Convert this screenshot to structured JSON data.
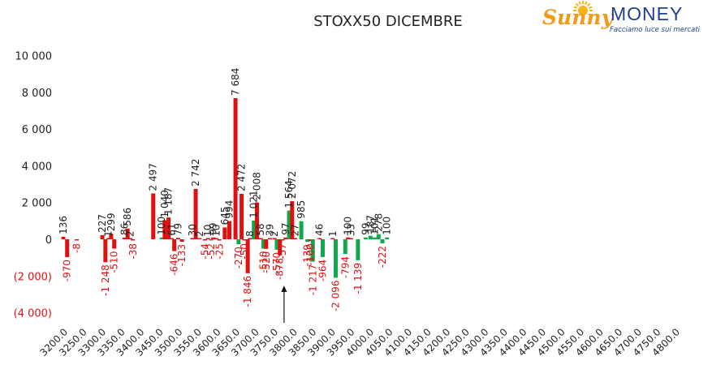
{
  "logo": {
    "word1": "Sunny",
    "word2": "MONEY",
    "tagline": "Facciamo luce sui mercati",
    "colors": {
      "sunny": "#f29a1a",
      "money": "#1f3f8f",
      "sun": "#f7b21b",
      "tagline": "#1f3f8f"
    }
  },
  "chart_data": {
    "type": "bar",
    "title": "STOXX50 DICEMBRE",
    "categories": [
      "3200.0",
      "3250.0",
      "3300.0",
      "3350.0",
      "3400.0",
      "3450.0",
      "3500.0",
      "3550.0",
      "3600.0",
      "3650.0",
      "3700.0",
      "3750.0",
      "3800.0",
      "3850.0",
      "3900.0",
      "3950.0",
      "4000.0",
      "4050.0",
      "4100.0",
      "4150.0",
      "4200.0",
      "4250.0",
      "4300.0",
      "4350.0",
      "4400.0",
      "4450.0",
      "4500.0",
      "4550.0",
      "4600.0",
      "4650.0",
      "4700.0",
      "4750.0",
      "4800.0"
    ],
    "ylim": [
      -4000,
      10000
    ],
    "yticks": [
      {
        "value": 10000,
        "label": "10 000"
      },
      {
        "value": 8000,
        "label": "8 000"
      },
      {
        "value": 6000,
        "label": "6 000"
      },
      {
        "value": 4000,
        "label": "4 000"
      },
      {
        "value": 2000,
        "label": "2 000"
      },
      {
        "value": 0,
        "label": "0"
      },
      {
        "value": -2000,
        "label": "(2 000)"
      },
      {
        "value": -4000,
        "label": "(4 000)"
      }
    ],
    "grid": false,
    "legend": "none",
    "colors": {
      "red": "#e01010",
      "green": "#10a84a",
      "axis_text": "#222222"
    },
    "bars": [
      {
        "x": 3200,
        "value": 136,
        "label": "136",
        "color": "red"
      },
      {
        "x": 3210,
        "value": -970,
        "label": "-970",
        "color": "red"
      },
      {
        "x": 3235,
        "value": -8,
        "label": "-8",
        "color": "red"
      },
      {
        "x": 3302,
        "value": 227,
        "label": "227",
        "color": "red"
      },
      {
        "x": 3310,
        "value": -1248,
        "label": "-1 248",
        "color": "red"
      },
      {
        "x": 3318,
        "value": 1,
        "label": "1",
        "color": "red"
      },
      {
        "x": 3325,
        "value": 299,
        "label": "299",
        "color": "red"
      },
      {
        "x": 3333,
        "value": -510,
        "label": "-510",
        "color": "red"
      },
      {
        "x": 3360,
        "value": 86,
        "label": "86",
        "color": "red"
      },
      {
        "x": 3368,
        "value": 586,
        "label": "586",
        "color": "red"
      },
      {
        "x": 3375,
        "value": 2,
        "label": "2",
        "color": "red"
      },
      {
        "x": 3382,
        "value": -38,
        "label": "-38",
        "color": "red"
      },
      {
        "x": 3435,
        "value": 2497,
        "label": "2 497",
        "color": "red"
      },
      {
        "x": 3457,
        "value": 100,
        "label": "100",
        "color": "green"
      },
      {
        "x": 3465,
        "value": 1040,
        "label": "1 040",
        "color": "red"
      },
      {
        "x": 3475,
        "value": 1187,
        "label": "1 187",
        "color": "red"
      },
      {
        "x": 3483,
        "value": 61,
        "label": "61",
        "color": "red"
      },
      {
        "x": 3490,
        "value": -646,
        "label": "-646",
        "color": "red"
      },
      {
        "x": 3500,
        "value": 79,
        "label": "79",
        "color": "red"
      },
      {
        "x": 3510,
        "value": -133,
        "label": "-133",
        "color": "red"
      },
      {
        "x": 3537,
        "value": 30,
        "label": "30",
        "color": "red"
      },
      {
        "x": 3546,
        "value": 2742,
        "label": "2 742",
        "color": "red"
      },
      {
        "x": 3556,
        "value": 2,
        "label": "2",
        "color": "red"
      },
      {
        "x": 3570,
        "value": -54,
        "label": "-54",
        "color": "red"
      },
      {
        "x": 3578,
        "value": 10,
        "label": "10",
        "color": "red"
      },
      {
        "x": 3586,
        "value": -52,
        "label": "-52",
        "color": "green"
      },
      {
        "x": 3592,
        "value": 99,
        "label": "99",
        "color": "red"
      },
      {
        "x": 3600,
        "value": 10,
        "label": "10",
        "color": "red"
      },
      {
        "x": 3608,
        "value": -25,
        "label": "-25",
        "color": "red"
      },
      {
        "x": 3622,
        "value": 645,
        "label": "645",
        "color": "red"
      },
      {
        "x": 3634,
        "value": 994,
        "label": "994",
        "color": "red"
      },
      {
        "x": 3650,
        "value": 7684,
        "label": "7 684",
        "color": "red"
      },
      {
        "x": 3658,
        "value": -270,
        "label": "-270",
        "color": "green"
      },
      {
        "x": 3666,
        "value": 2472,
        "label": "2 472",
        "color": "red"
      },
      {
        "x": 3673,
        "value": -50,
        "label": "-50",
        "color": "red"
      },
      {
        "x": 3682,
        "value": -1846,
        "label": "-1 846",
        "color": "red"
      },
      {
        "x": 3688,
        "value": 8,
        "label": "8",
        "color": "red"
      },
      {
        "x": 3698,
        "value": 1021,
        "label": "1 021",
        "color": "green"
      },
      {
        "x": 3706,
        "value": 2008,
        "label": "2 008",
        "color": "red"
      },
      {
        "x": 3716,
        "value": 58,
        "label": "58",
        "color": "red"
      },
      {
        "x": 3723,
        "value": -510,
        "label": "-510",
        "color": "green"
      },
      {
        "x": 3730,
        "value": -520,
        "label": "-520",
        "color": "red"
      },
      {
        "x": 3740,
        "value": 39,
        "label": "39",
        "color": "red"
      },
      {
        "x": 3752,
        "value": 2,
        "label": "2",
        "color": "red"
      },
      {
        "x": 3758,
        "value": -570,
        "label": "-570",
        "color": "green"
      },
      {
        "x": 3766,
        "value": -878,
        "label": "-878",
        "color": "red"
      },
      {
        "x": 3773,
        "value": -57,
        "label": "-57",
        "color": "red"
      },
      {
        "x": 3781,
        "value": 97,
        "label": "97",
        "color": "red"
      },
      {
        "x": 3790,
        "value": 1564,
        "label": "1 564",
        "color": "green"
      },
      {
        "x": 3798,
        "value": 2072,
        "label": "2 072",
        "color": "red"
      },
      {
        "x": 3806,
        "value": 27,
        "label": "27",
        "color": "red"
      },
      {
        "x": 3822,
        "value": 985,
        "label": "985",
        "color": "green"
      },
      {
        "x": 3838,
        "value": -139,
        "label": "-139",
        "color": "green"
      },
      {
        "x": 3846,
        "value": -100,
        "label": "-100",
        "color": "red"
      },
      {
        "x": 3852,
        "value": -1217,
        "label": "-1 217",
        "color": "green"
      },
      {
        "x": 3870,
        "value": 46,
        "label": "46",
        "color": "red"
      },
      {
        "x": 3878,
        "value": -964,
        "label": "-964",
        "color": "green"
      },
      {
        "x": 3904,
        "value": 1,
        "label": "1",
        "color": "red"
      },
      {
        "x": 3912,
        "value": -2096,
        "label": "-2 096",
        "color": "green"
      },
      {
        "x": 3937,
        "value": -794,
        "label": "-794",
        "color": "green"
      },
      {
        "x": 3944,
        "value": 100,
        "label": "100",
        "color": "red"
      },
      {
        "x": 3952,
        "value": 33,
        "label": "33",
        "color": "red"
      },
      {
        "x": 3970,
        "value": -1139,
        "label": "-1 139",
        "color": "green"
      },
      {
        "x": 3990,
        "value": 99,
        "label": "99",
        "color": "green"
      },
      {
        "x": 4003,
        "value": 187,
        "label": "187",
        "color": "green"
      },
      {
        "x": 4014,
        "value": 101,
        "label": "101",
        "color": "green"
      },
      {
        "x": 4024,
        "value": 278,
        "label": "278",
        "color": "green"
      },
      {
        "x": 4034,
        "value": -222,
        "label": "-222",
        "color": "green"
      },
      {
        "x": 4046,
        "value": 100,
        "label": "100",
        "color": "green"
      }
    ],
    "annotations": [
      {
        "type": "arrow",
        "x": 3777,
        "direction": "up"
      }
    ]
  }
}
